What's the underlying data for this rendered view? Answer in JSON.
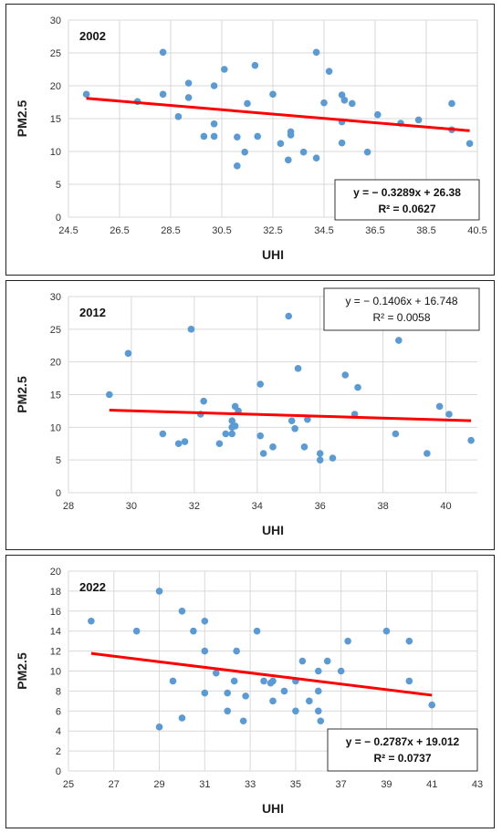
{
  "chart_data": [
    {
      "type": "scatter",
      "title": "2002",
      "xlabel": "UHI",
      "ylabel": "PM2.5",
      "xlim": [
        24.5,
        40.5
      ],
      "ylim": [
        0,
        30
      ],
      "xticks": [
        24.5,
        26.5,
        28.5,
        30.5,
        32.5,
        34.5,
        36.5,
        38.5,
        40.5
      ],
      "yticks": [
        0,
        5,
        10,
        15,
        20,
        25,
        30
      ],
      "grid": "on",
      "legend": "none",
      "marker_color": "#5B9BD5",
      "trend_color": "#FF0000",
      "annotation": {
        "equation": "y = − 0.3289x + 26.38",
        "r2": "R² = 0.0627",
        "position": "bottom-right"
      },
      "trendline": {
        "slope": -0.3289,
        "intercept": 26.38
      },
      "points": [
        [
          25.2,
          18.7
        ],
        [
          27.2,
          17.6
        ],
        [
          28.2,
          25.1
        ],
        [
          28.2,
          18.7
        ],
        [
          28.8,
          15.3
        ],
        [
          29.2,
          20.4
        ],
        [
          29.2,
          18.2
        ],
        [
          29.8,
          12.3
        ],
        [
          30.2,
          20.0
        ],
        [
          30.2,
          14.2
        ],
        [
          30.2,
          12.3
        ],
        [
          30.6,
          22.5
        ],
        [
          31.1,
          12.2
        ],
        [
          31.1,
          7.8
        ],
        [
          31.4,
          9.9
        ],
        [
          31.5,
          17.3
        ],
        [
          31.8,
          23.1
        ],
        [
          31.9,
          12.3
        ],
        [
          32.5,
          18.7
        ],
        [
          32.8,
          11.2
        ],
        [
          33.1,
          8.7
        ],
        [
          33.2,
          13.0
        ],
        [
          33.2,
          12.5
        ],
        [
          33.7,
          9.9
        ],
        [
          34.2,
          25.1
        ],
        [
          34.2,
          9.0
        ],
        [
          34.5,
          17.4
        ],
        [
          34.7,
          22.2
        ],
        [
          35.2,
          18.6
        ],
        [
          35.2,
          14.5
        ],
        [
          35.2,
          11.3
        ],
        [
          35.3,
          17.8
        ],
        [
          35.6,
          17.3
        ],
        [
          36.2,
          9.9
        ],
        [
          36.6,
          15.6
        ],
        [
          37.5,
          14.3
        ],
        [
          38.2,
          14.8
        ],
        [
          39.5,
          17.3
        ],
        [
          39.5,
          13.3
        ],
        [
          40.2,
          11.2
        ]
      ]
    },
    {
      "type": "scatter",
      "title": "2012",
      "xlabel": "UHI",
      "ylabel": "PM2.5",
      "xlim": [
        28,
        41
      ],
      "ylim": [
        0,
        30
      ],
      "xticks": [
        28,
        30,
        32,
        34,
        36,
        38,
        40
      ],
      "yticks": [
        0,
        5,
        10,
        15,
        20,
        25,
        30
      ],
      "grid": "on",
      "legend": "none",
      "marker_color": "#5B9BD5",
      "trend_color": "#FF0000",
      "annotation": {
        "equation": "y = − 0.1406x + 16.748",
        "r2": "R² = 0.0058",
        "position": "top-right"
      },
      "trendline": {
        "slope": -0.1406,
        "intercept": 16.748
      },
      "points": [
        [
          29.3,
          15.0
        ],
        [
          29.9,
          21.3
        ],
        [
          31.0,
          9.0
        ],
        [
          31.5,
          7.5
        ],
        [
          31.7,
          7.8
        ],
        [
          31.9,
          25.0
        ],
        [
          32.2,
          12.0
        ],
        [
          32.3,
          14.0
        ],
        [
          32.8,
          7.5
        ],
        [
          33.0,
          9.0
        ],
        [
          33.2,
          11.0
        ],
        [
          33.2,
          9.0
        ],
        [
          33.3,
          10.2
        ],
        [
          33.3,
          13.2
        ],
        [
          33.2,
          10.0
        ],
        [
          33.4,
          12.5
        ],
        [
          34.1,
          16.6
        ],
        [
          34.2,
          6.0
        ],
        [
          34.1,
          8.7
        ],
        [
          34.5,
          7.0
        ],
        [
          35.0,
          27.0
        ],
        [
          35.1,
          11.0
        ],
        [
          35.2,
          9.8
        ],
        [
          35.3,
          19.0
        ],
        [
          35.5,
          7.0
        ],
        [
          35.6,
          11.2
        ],
        [
          36.0,
          6.0
        ],
        [
          36.0,
          5.0
        ],
        [
          36.4,
          5.3
        ],
        [
          36.8,
          18.0
        ],
        [
          37.1,
          12.0
        ],
        [
          37.2,
          16.1
        ],
        [
          38.4,
          9.0
        ],
        [
          38.5,
          23.3
        ],
        [
          39.4,
          6.0
        ],
        [
          39.8,
          13.2
        ],
        [
          40.1,
          12.0
        ],
        [
          40.8,
          8.0
        ]
      ]
    },
    {
      "type": "scatter",
      "title": "2022",
      "xlabel": "UHI",
      "ylabel": "PM2.5",
      "xlim": [
        25,
        43
      ],
      "ylim": [
        0,
        20
      ],
      "xticks": [
        25,
        27,
        29,
        31,
        33,
        35,
        37,
        39,
        41,
        43
      ],
      "yticks": [
        0,
        2,
        4,
        6,
        8,
        10,
        12,
        14,
        16,
        18,
        20
      ],
      "grid": "on",
      "legend": "none",
      "marker_color": "#5B9BD5",
      "trend_color": "#FF0000",
      "annotation": {
        "equation": "y = − 0.2787x + 19.012",
        "r2": "R² = 0.0737",
        "position": "bottom-right"
      },
      "trendline": {
        "slope": -0.2787,
        "intercept": 19.012
      },
      "points": [
        [
          26.0,
          15.0
        ],
        [
          28.0,
          14.0
        ],
        [
          29.0,
          18.0
        ],
        [
          29.0,
          4.4
        ],
        [
          29.6,
          9.0
        ],
        [
          30.0,
          16.0
        ],
        [
          30.0,
          5.3
        ],
        [
          30.5,
          14.0
        ],
        [
          31.0,
          15.0
        ],
        [
          31.0,
          12.0
        ],
        [
          31.0,
          7.8
        ],
        [
          31.5,
          9.8
        ],
        [
          32.0,
          7.8
        ],
        [
          32.0,
          6.0
        ],
        [
          32.3,
          9.0
        ],
        [
          32.4,
          12.0
        ],
        [
          32.7,
          5.0
        ],
        [
          32.8,
          7.5
        ],
        [
          33.3,
          14.0
        ],
        [
          33.6,
          9.0
        ],
        [
          33.9,
          8.8
        ],
        [
          34.0,
          9.0
        ],
        [
          34.0,
          7.0
        ],
        [
          34.5,
          8.0
        ],
        [
          35.0,
          9.0
        ],
        [
          35.0,
          6.0
        ],
        [
          35.3,
          11.0
        ],
        [
          35.6,
          7.0
        ],
        [
          36.0,
          10.0
        ],
        [
          36.0,
          8.0
        ],
        [
          36.0,
          6.0
        ],
        [
          36.1,
          5.0
        ],
        [
          36.4,
          11.0
        ],
        [
          37.0,
          10.0
        ],
        [
          37.3,
          13.0
        ],
        [
          39.0,
          14.0
        ],
        [
          40.0,
          13.0
        ],
        [
          40.0,
          9.0
        ],
        [
          41.0,
          6.6
        ]
      ]
    }
  ]
}
